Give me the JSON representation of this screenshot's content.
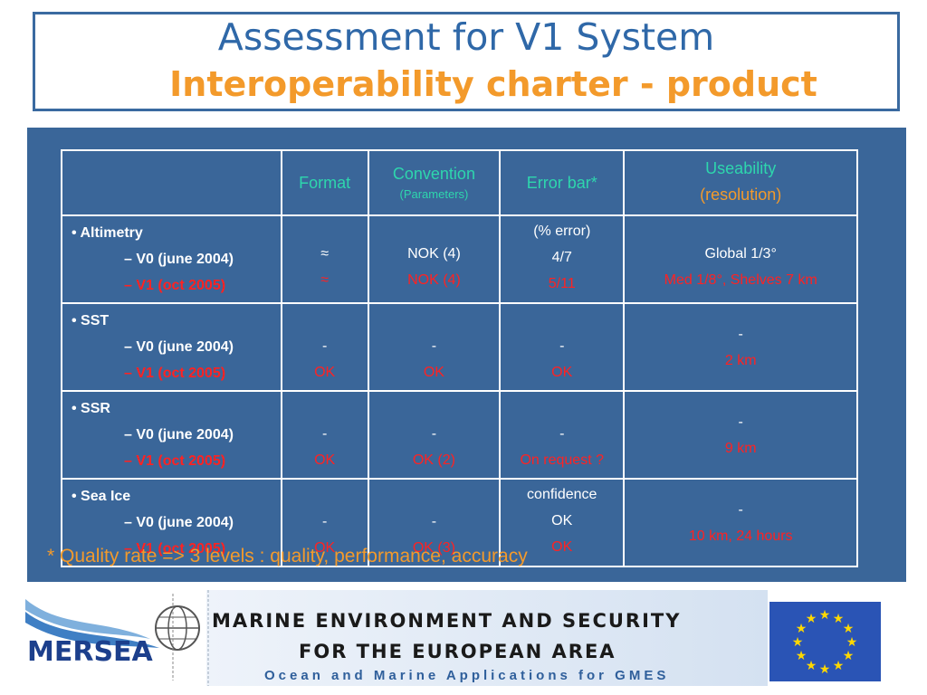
{
  "title": {
    "line1": "Assessment for V1 System",
    "line2": "Interoperability charter - product"
  },
  "table": {
    "headers": {
      "format": "Format",
      "convention": "Convention",
      "convention_sub": "(Parameters)",
      "error_bar": "Error bar*",
      "useability": "Useability",
      "useability_sub": "(resolution)"
    },
    "rows": [
      {
        "name": "Altimetry",
        "v0": "– V0 (june 2004)",
        "v1": "– V1 (oct 2005)",
        "format": [
          "≈",
          "≈"
        ],
        "convention": [
          "NOK (4)",
          "NOK (4)"
        ],
        "error_bar": [
          "(% error)",
          "4/7",
          "5/11"
        ],
        "useability": [
          "Global 1/3°",
          "Med 1/8°, Shelves 7 km"
        ]
      },
      {
        "name": "SST",
        "v0": "– V0 (june 2004)",
        "v1": "– V1 (oct 2005)",
        "format": [
          "-",
          "OK"
        ],
        "convention": [
          "-",
          "OK"
        ],
        "error_bar": [
          "-",
          "OK"
        ],
        "useability": [
          "-",
          "2 km"
        ]
      },
      {
        "name": "SSR",
        "v0": "– V0 (june 2004)",
        "v1": "– V1 (oct 2005)",
        "format": [
          "-",
          "OK"
        ],
        "convention": [
          "-",
          "OK (2)"
        ],
        "error_bar": [
          "-",
          "On request ?"
        ],
        "useability": [
          "-",
          "9 km"
        ]
      },
      {
        "name": "Sea Ice",
        "v0": "– V0 (june 2004)",
        "v1": "– V1 (oct 2005)",
        "format": [
          "-",
          "OK"
        ],
        "convention": [
          "-",
          "OK (3)"
        ],
        "error_bar": [
          "confidence",
          "OK",
          "OK"
        ],
        "useability": [
          "-",
          "10 km, 24 hours"
        ]
      }
    ]
  },
  "footnote": "*  Quality rate => 3 levels : quality, performance, accuracy",
  "footer": {
    "logo_text": "MERSEA",
    "line1": "MARINE ENVIRONMENT AND SECURITY",
    "line2": "FOR THE EUROPEAN AREA",
    "line3": "Ocean and Marine Applications for GMES"
  },
  "colors": {
    "title_blue": "#2f68a8",
    "accent_orange": "#f39a2b",
    "panel_blue": "#3a6699",
    "header_teal": "#2ed6ad",
    "v1_red": "#ff2222"
  }
}
